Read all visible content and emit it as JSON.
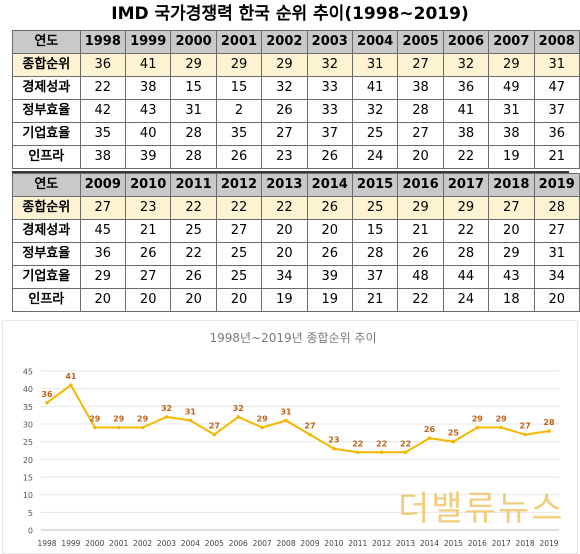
{
  "title": "IMD 국가경쟁력 한국 순위 추이(1998~2019)",
  "table1": {
    "header": [
      "연도",
      "1998",
      "1999",
      "2000",
      "2001",
      "2002",
      "2003",
      "2004",
      "2005",
      "2006",
      "2007",
      "2008"
    ],
    "rows": [
      {
        "label": "종합순위",
        "values": [
          "36",
          "41",
          "29",
          "29",
          "29",
          "32",
          "31",
          "27",
          "32",
          "29",
          "31"
        ]
      },
      {
        "label": "경제성과",
        "values": [
          "22",
          "38",
          "15",
          "15",
          "32",
          "33",
          "41",
          "38",
          "36",
          "49",
          "47"
        ]
      },
      {
        "label": "정부효율",
        "values": [
          "42",
          "43",
          "31",
          "2",
          "26",
          "33",
          "32",
          "28",
          "41",
          "31",
          "37"
        ]
      },
      {
        "label": "기업효율",
        "values": [
          "35",
          "40",
          "28",
          "35",
          "27",
          "37",
          "25",
          "27",
          "38",
          "38",
          "36"
        ]
      },
      {
        "label": "인프라",
        "values": [
          "38",
          "39",
          "28",
          "26",
          "23",
          "26",
          "24",
          "20",
          "22",
          "19",
          "21"
        ]
      }
    ]
  },
  "table2": {
    "header": [
      "연도",
      "2009",
      "2010",
      "2011",
      "2012",
      "2013",
      "2014",
      "2015",
      "2016",
      "2017",
      "2018",
      "2019"
    ],
    "rows": [
      {
        "label": "종합순위",
        "values": [
          "27",
          "23",
          "22",
          "22",
          "22",
          "26",
          "25",
          "29",
          "29",
          "27",
          "28"
        ]
      },
      {
        "label": "경제성과",
        "values": [
          "45",
          "21",
          "25",
          "27",
          "20",
          "20",
          "15",
          "21",
          "22",
          "20",
          "27"
        ]
      },
      {
        "label": "정부효율",
        "values": [
          "36",
          "26",
          "22",
          "25",
          "20",
          "26",
          "28",
          "26",
          "28",
          "29",
          "31"
        ]
      },
      {
        "label": "기업효율",
        "values": [
          "29",
          "27",
          "26",
          "25",
          "34",
          "39",
          "37",
          "48",
          "44",
          "43",
          "34"
        ]
      },
      {
        "label": "인프라",
        "values": [
          "20",
          "20",
          "20",
          "20",
          "19",
          "19",
          "21",
          "22",
          "24",
          "18",
          "20"
        ]
      }
    ]
  },
  "chart_data": {
    "type": "line",
    "title": "1998년~2019년 종합순위 추이",
    "x": [
      "1998",
      "1999",
      "2000",
      "2001",
      "2002",
      "2003",
      "2004",
      "2005",
      "2006",
      "2007",
      "2008",
      "2009",
      "2010",
      "2011",
      "2012",
      "2013",
      "2014",
      "2015",
      "2016",
      "2017",
      "2018",
      "2019"
    ],
    "series": [
      {
        "values": [
          36,
          41,
          29,
          29,
          29,
          32,
          31,
          27,
          32,
          29,
          31,
          27,
          23,
          22,
          22,
          22,
          26,
          25,
          29,
          29,
          27,
          28
        ]
      }
    ],
    "ylim": [
      0,
      45
    ],
    "yticks": [
      0,
      5,
      10,
      15,
      20,
      25,
      30,
      35,
      40,
      45
    ],
    "grid": true,
    "data_labels": true,
    "line_color": "#f5b800",
    "label_color": "#c0621a"
  },
  "watermark": "더밸류뉴스"
}
